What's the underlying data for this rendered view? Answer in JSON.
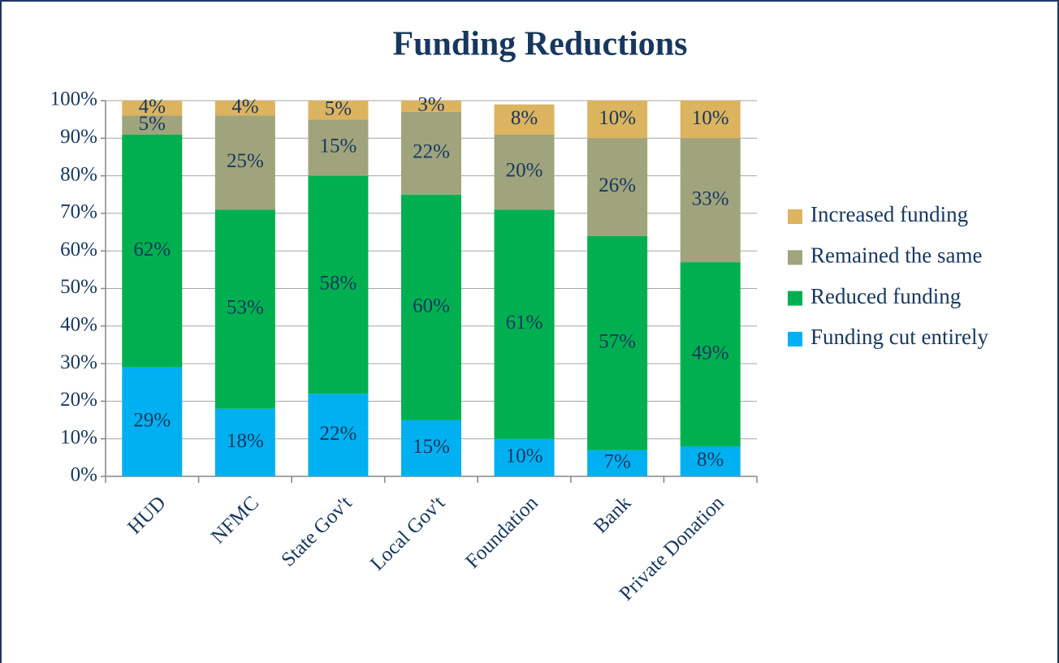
{
  "chart_data": {
    "type": "stacked_bar",
    "title": "Funding Reductions",
    "categories": [
      "HUD",
      "NFMC",
      "State Gov't",
      "Local Gov't",
      "Foundation",
      "Bank",
      "Private Donation"
    ],
    "series": [
      {
        "name": "Funding cut entirely",
        "color": "#00b0f0",
        "values": [
          29,
          18,
          22,
          15,
          10,
          7,
          8
        ],
        "value_labels": [
          "29%",
          "18%",
          "22%",
          "15%",
          "10%",
          "7%",
          "8%"
        ]
      },
      {
        "name": "Reduced funding",
        "color": "#00b050",
        "values": [
          62,
          53,
          58,
          60,
          61,
          57,
          49
        ],
        "value_labels": [
          "62%",
          "53%",
          "58%",
          "60%",
          "61%",
          "57%",
          "49%"
        ]
      },
      {
        "name": "Remained the same",
        "color": "#a0a47c",
        "values": [
          5,
          25,
          15,
          22,
          20,
          26,
          33
        ],
        "value_labels": [
          "5%",
          "25%",
          "15%",
          "22%",
          "20%",
          "26%",
          "33%"
        ]
      },
      {
        "name": "Increased funding",
        "color": "#dcb45f",
        "values": [
          4,
          4,
          5,
          3,
          8,
          10,
          10
        ],
        "value_labels": [
          "4%",
          "4%",
          "5%",
          "3%",
          "8%",
          "10%",
          "10%"
        ]
      }
    ],
    "ylim": [
      0,
      100
    ],
    "yticks": [
      {
        "value": 0,
        "label": "0%"
      },
      {
        "value": 10,
        "label": "10%"
      },
      {
        "value": 20,
        "label": "20%"
      },
      {
        "value": 30,
        "label": "30%"
      },
      {
        "value": 40,
        "label": "40%"
      },
      {
        "value": 50,
        "label": "50%"
      },
      {
        "value": 60,
        "label": "60%"
      },
      {
        "value": 70,
        "label": "70%"
      },
      {
        "value": 80,
        "label": "80%"
      },
      {
        "value": 90,
        "label": "90%"
      },
      {
        "value": 100,
        "label": "100%"
      }
    ],
    "grid": true,
    "legend": "right"
  }
}
